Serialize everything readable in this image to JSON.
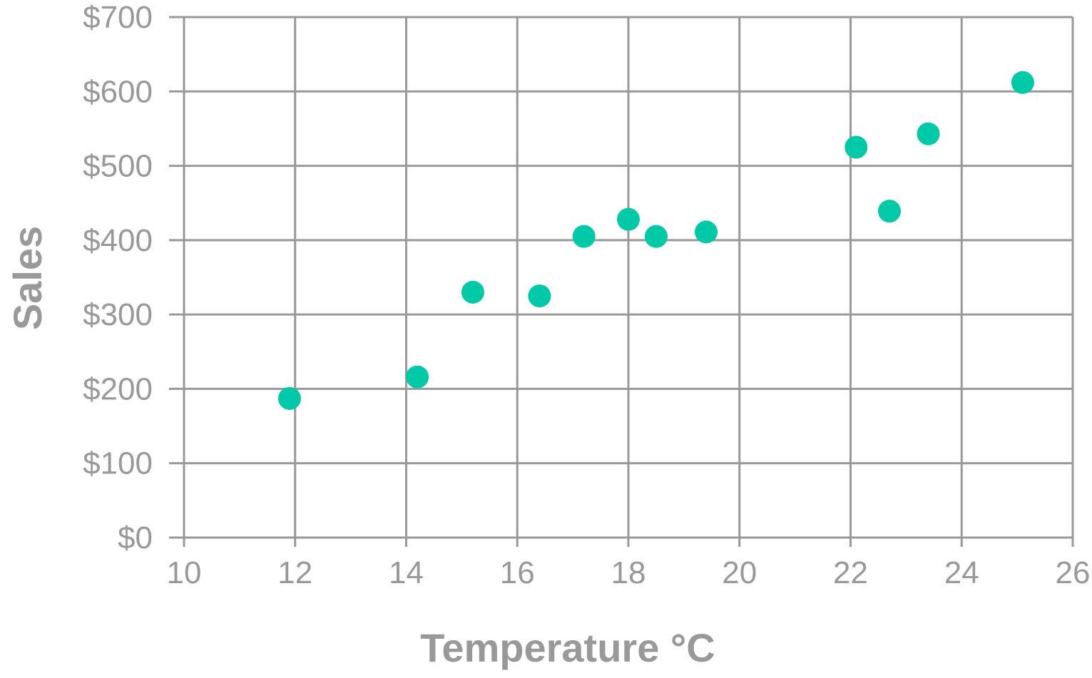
{
  "chart_data": {
    "type": "scatter",
    "title": "",
    "xlabel": "Temperature °C",
    "ylabel": "Sales",
    "xlim": [
      10,
      26
    ],
    "ylim": [
      0,
      700
    ],
    "x_ticks": [
      10,
      12,
      14,
      16,
      18,
      20,
      22,
      24,
      26
    ],
    "y_ticks": [
      0,
      100,
      200,
      300,
      400,
      500,
      600,
      700
    ],
    "x_tick_labels": [
      "10",
      "12",
      "14",
      "16",
      "18",
      "20",
      "22",
      "24",
      "26"
    ],
    "y_tick_labels": [
      "$0",
      "$100",
      "$200",
      "$300",
      "$400",
      "$500",
      "$600",
      "$700"
    ],
    "grid": true,
    "marker_color": "#00c9a7",
    "grid_color": "#999999",
    "series": [
      {
        "points": [
          {
            "x": 11.9,
            "y": 187
          },
          {
            "x": 14.2,
            "y": 216
          },
          {
            "x": 15.2,
            "y": 330
          },
          {
            "x": 16.4,
            "y": 325
          },
          {
            "x": 17.2,
            "y": 405
          },
          {
            "x": 18.0,
            "y": 428
          },
          {
            "x": 18.5,
            "y": 405
          },
          {
            "x": 19.4,
            "y": 411
          },
          {
            "x": 22.1,
            "y": 525
          },
          {
            "x": 22.7,
            "y": 439
          },
          {
            "x": 23.4,
            "y": 543
          },
          {
            "x": 25.1,
            "y": 612
          }
        ]
      }
    ]
  }
}
